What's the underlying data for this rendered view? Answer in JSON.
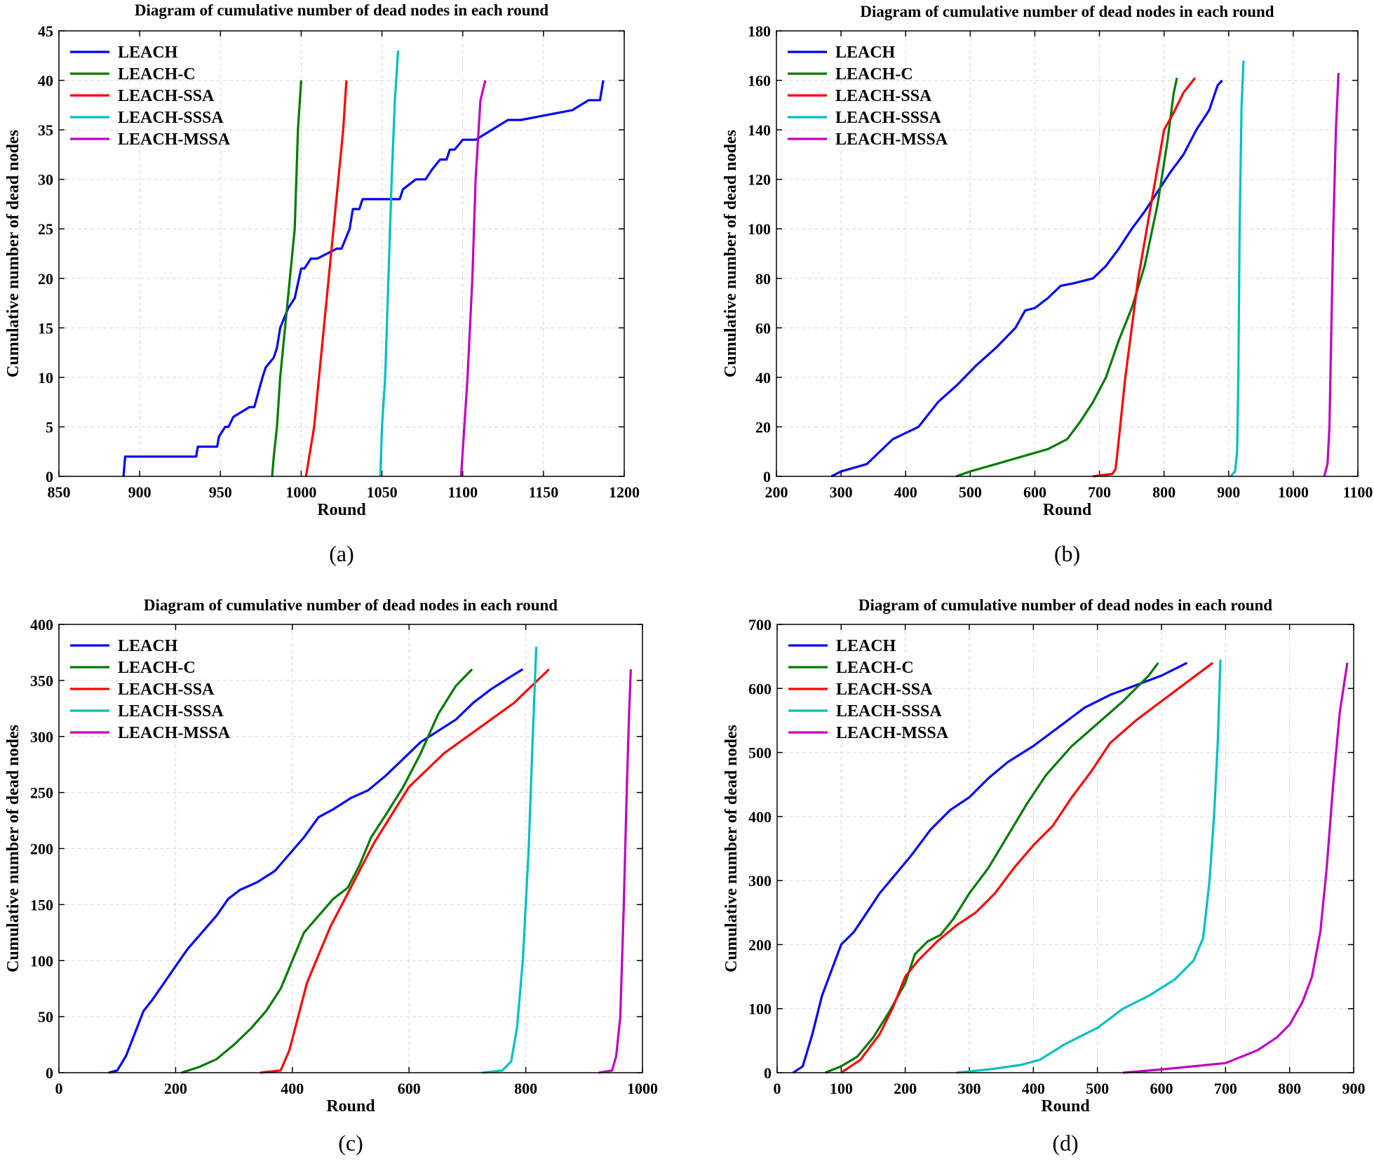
{
  "chart_data": [
    {
      "type": "line",
      "panel_label": "(a)",
      "title": "Diagram of cumulative number of dead nodes in each round",
      "xlabel": "Round",
      "ylabel": "Cumulative number of dead nodes",
      "xlim": [
        850,
        1200
      ],
      "ylim": [
        0,
        45
      ],
      "xticks": [
        850,
        900,
        950,
        1000,
        1050,
        1100,
        1150,
        1200
      ],
      "yticks": [
        0,
        5,
        10,
        15,
        20,
        25,
        30,
        35,
        40,
        45
      ],
      "legend_position": "top-left",
      "grid": true,
      "series": [
        {
          "name": "LEACH",
          "color": "#0000ff",
          "x": [
            890,
            891,
            935,
            936,
            948,
            949,
            953,
            955,
            958,
            968,
            971,
            976,
            978,
            983,
            985,
            987,
            992,
            996,
            1000,
            1002,
            1006,
            1010,
            1022,
            1025,
            1030,
            1032,
            1036,
            1038,
            1045,
            1061,
            1063,
            1071,
            1077,
            1081,
            1086,
            1090,
            1092,
            1095,
            1100,
            1103,
            1108,
            1128,
            1136,
            1168,
            1178,
            1185,
            1187
          ],
          "y": [
            0,
            2,
            2,
            3,
            3,
            4,
            5,
            5,
            6,
            7,
            7,
            10,
            11,
            12,
            13,
            15,
            17,
            18,
            21,
            21,
            22,
            22,
            23,
            23,
            25,
            27,
            27,
            28,
            28,
            28,
            29,
            30,
            30,
            31,
            32,
            32,
            33,
            33,
            34,
            34,
            34,
            36,
            36,
            37,
            38,
            38,
            40
          ]
        },
        {
          "name": "LEACH-C",
          "color": "#007a00",
          "x": [
            982,
            983,
            985,
            987,
            990,
            993,
            996,
            998,
            1000
          ],
          "y": [
            0,
            2,
            5,
            10,
            15,
            20,
            25,
            35,
            40
          ]
        },
        {
          "name": "LEACH-SSA",
          "color": "#ff0000",
          "x": [
            1003,
            1005,
            1008,
            1011,
            1014,
            1017,
            1020,
            1023,
            1026,
            1028
          ],
          "y": [
            0,
            2,
            5,
            10,
            15,
            20,
            25,
            30,
            35,
            40
          ]
        },
        {
          "name": "LEACH-SSSA",
          "color": "#00bfbf",
          "x": [
            1049,
            1050,
            1052,
            1054,
            1056,
            1058,
            1060
          ],
          "y": [
            0,
            5,
            10,
            20,
            30,
            38,
            43
          ]
        },
        {
          "name": "LEACH-MSSA",
          "color": "#bf00bf",
          "x": [
            1099,
            1101,
            1103,
            1106,
            1108,
            1111,
            1114
          ],
          "y": [
            0,
            5,
            10,
            20,
            30,
            38,
            40
          ]
        }
      ]
    },
    {
      "type": "line",
      "panel_label": "(b)",
      "title": "Diagram of cumulative number of dead nodes in each round",
      "xlabel": "Round",
      "ylabel": "Cumulative number of dead nodes",
      "xlim": [
        200,
        1100
      ],
      "ylim": [
        0,
        180
      ],
      "xticks": [
        200,
        300,
        400,
        500,
        600,
        700,
        800,
        900,
        1000,
        1100
      ],
      "yticks": [
        0,
        20,
        40,
        60,
        80,
        100,
        120,
        140,
        160,
        180
      ],
      "legend_position": "top-left",
      "grid": true,
      "series": [
        {
          "name": "LEACH",
          "color": "#0000ff",
          "x": [
            285,
            300,
            340,
            380,
            420,
            450,
            480,
            510,
            540,
            570,
            585,
            600,
            620,
            640,
            660,
            690,
            710,
            730,
            750,
            770,
            790,
            810,
            830,
            850,
            870,
            883,
            890
          ],
          "y": [
            0,
            2,
            5,
            15,
            20,
            30,
            37,
            45,
            52,
            60,
            67,
            68,
            72,
            77,
            78,
            80,
            85,
            92,
            100,
            107,
            115,
            123,
            130,
            140,
            148,
            158,
            160
          ]
        },
        {
          "name": "LEACH-C",
          "color": "#007a00",
          "x": [
            478,
            500,
            540,
            580,
            620,
            650,
            670,
            690,
            710,
            730,
            750,
            770,
            790,
            805,
            815,
            820
          ],
          "y": [
            0,
            2,
            5,
            8,
            11,
            15,
            22,
            30,
            40,
            55,
            68,
            85,
            110,
            135,
            155,
            161
          ]
        },
        {
          "name": "LEACH-SSA",
          "color": "#ff0000",
          "x": [
            690,
            720,
            725,
            730,
            740,
            750,
            760,
            770,
            780,
            790,
            800,
            815,
            830,
            848
          ],
          "y": [
            0,
            1,
            3,
            15,
            40,
            60,
            80,
            95,
            110,
            125,
            140,
            147,
            155,
            161
          ]
        },
        {
          "name": "LEACH-SSSA",
          "color": "#00bfbf",
          "x": [
            903,
            910,
            913,
            915,
            917,
            920,
            923
          ],
          "y": [
            0,
            2,
            10,
            40,
            100,
            150,
            168
          ]
        },
        {
          "name": "LEACH-MSSA",
          "color": "#bf00bf",
          "x": [
            1048,
            1053,
            1056,
            1059,
            1062,
            1066,
            1070
          ],
          "y": [
            0,
            5,
            20,
            60,
            100,
            140,
            163
          ]
        }
      ]
    },
    {
      "type": "line",
      "panel_label": "(c)",
      "title": "Diagram of cumulative number of dead nodes in each round",
      "xlabel": "Round",
      "ylabel": "Cumulative number of dead nodes",
      "xlim": [
        0,
        1000
      ],
      "ylim": [
        0,
        400
      ],
      "xticks": [
        0,
        200,
        400,
        600,
        800,
        1000
      ],
      "yticks": [
        0,
        50,
        100,
        150,
        200,
        250,
        300,
        350,
        400
      ],
      "legend_position": "top-left",
      "grid": true,
      "series": [
        {
          "name": "LEACH",
          "color": "#0000ff",
          "x": [
            85,
            100,
            115,
            130,
            145,
            160,
            180,
            200,
            220,
            245,
            270,
            290,
            310,
            340,
            370,
            395,
            420,
            445,
            470,
            500,
            530,
            560,
            590,
            620,
            650,
            680,
            710,
            740,
            770,
            795
          ],
          "y": [
            0,
            2,
            15,
            35,
            55,
            65,
            80,
            95,
            110,
            125,
            140,
            155,
            163,
            170,
            180,
            195,
            210,
            228,
            235,
            245,
            252,
            265,
            280,
            295,
            305,
            315,
            330,
            342,
            352,
            360
          ]
        },
        {
          "name": "LEACH-C",
          "color": "#007a00",
          "x": [
            210,
            240,
            270,
            300,
            330,
            355,
            380,
            400,
            420,
            445,
            470,
            495,
            515,
            535,
            560,
            590,
            620,
            650,
            680,
            708
          ],
          "y": [
            0,
            5,
            12,
            25,
            40,
            55,
            75,
            100,
            125,
            140,
            155,
            165,
            185,
            210,
            230,
            255,
            285,
            320,
            345,
            360
          ]
        },
        {
          "name": "LEACH-SSA",
          "color": "#ff0000",
          "x": [
            345,
            380,
            395,
            410,
            425,
            445,
            465,
            490,
            510,
            540,
            570,
            600,
            630,
            660,
            700,
            740,
            780,
            810,
            840
          ],
          "y": [
            0,
            2,
            20,
            50,
            80,
            105,
            130,
            155,
            175,
            205,
            230,
            255,
            270,
            285,
            300,
            315,
            330,
            345,
            360
          ]
        },
        {
          "name": "LEACH-SSSA",
          "color": "#00bfbf",
          "x": [
            725,
            760,
            775,
            785,
            795,
            805,
            812,
            818
          ],
          "y": [
            0,
            2,
            10,
            40,
            100,
            200,
            300,
            380
          ]
        },
        {
          "name": "LEACH-MSSA",
          "color": "#bf00bf",
          "x": [
            925,
            948,
            955,
            962,
            968,
            973,
            977,
            980
          ],
          "y": [
            0,
            2,
            15,
            50,
            150,
            250,
            320,
            360
          ]
        }
      ]
    },
    {
      "type": "line",
      "panel_label": "(d)",
      "title": "Diagram of cumulative number of dead nodes in each round",
      "xlabel": "Round",
      "ylabel": "Cumulative number of dead nodes",
      "xlim": [
        0,
        900
      ],
      "ylim": [
        0,
        700
      ],
      "xticks": [
        0,
        100,
        200,
        300,
        400,
        500,
        600,
        700,
        800,
        900
      ],
      "yticks": [
        0,
        100,
        200,
        300,
        400,
        500,
        600,
        700
      ],
      "legend_position": "top-left",
      "grid": true,
      "series": [
        {
          "name": "LEACH",
          "color": "#0000ff",
          "x": [
            25,
            40,
            55,
            70,
            85,
            100,
            120,
            140,
            160,
            185,
            210,
            240,
            270,
            300,
            330,
            360,
            400,
            440,
            480,
            520,
            560,
            600,
            640
          ],
          "y": [
            0,
            10,
            60,
            120,
            160,
            200,
            220,
            250,
            280,
            310,
            340,
            380,
            410,
            430,
            460,
            485,
            510,
            540,
            570,
            590,
            605,
            620,
            640
          ]
        },
        {
          "name": "LEACH-C",
          "color": "#007a00",
          "x": [
            75,
            100,
            125,
            150,
            175,
            200,
            215,
            235,
            255,
            275,
            300,
            330,
            360,
            390,
            420,
            460,
            500,
            540,
            580,
            595
          ],
          "y": [
            0,
            10,
            25,
            55,
            95,
            140,
            185,
            205,
            215,
            240,
            280,
            320,
            370,
            420,
            465,
            510,
            545,
            580,
            620,
            640
          ]
        },
        {
          "name": "LEACH-SSA",
          "color": "#ff0000",
          "x": [
            100,
            130,
            160,
            180,
            200,
            220,
            250,
            280,
            310,
            340,
            370,
            400,
            430,
            460,
            490,
            520,
            560,
            600,
            640,
            680
          ],
          "y": [
            0,
            20,
            60,
            100,
            150,
            175,
            205,
            230,
            250,
            280,
            320,
            355,
            385,
            430,
            470,
            515,
            550,
            580,
            610,
            640
          ]
        },
        {
          "name": "LEACH-SSSA",
          "color": "#00bfbf",
          "x": [
            280,
            330,
            380,
            410,
            450,
            500,
            540,
            580,
            620,
            650,
            665,
            675,
            682,
            688,
            692
          ],
          "y": [
            0,
            5,
            12,
            20,
            45,
            70,
            100,
            120,
            145,
            175,
            210,
            300,
            400,
            520,
            645
          ]
        },
        {
          "name": "LEACH-MSSA",
          "color": "#bf00bf",
          "x": [
            540,
            600,
            650,
            700,
            750,
            780,
            800,
            820,
            835,
            848,
            858,
            868,
            878,
            890
          ],
          "y": [
            0,
            5,
            10,
            15,
            35,
            55,
            75,
            110,
            150,
            220,
            320,
            450,
            560,
            640
          ]
        }
      ]
    }
  ]
}
